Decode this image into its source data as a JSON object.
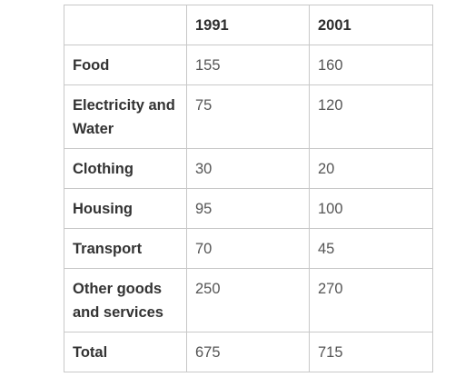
{
  "chart_data": {
    "type": "table",
    "columns": [
      "",
      "1991",
      "2001"
    ],
    "rows": [
      {
        "label": "Food",
        "values": [
          "155",
          "160"
        ]
      },
      {
        "label": "Electricity and Water",
        "values": [
          "75",
          "120"
        ]
      },
      {
        "label": "Clothing",
        "values": [
          "30",
          "20"
        ]
      },
      {
        "label": "Housing",
        "values": [
          "95",
          "100"
        ]
      },
      {
        "label": "Transport",
        "values": [
          "70",
          "45"
        ]
      },
      {
        "label": "Other goods and services",
        "values": [
          "250",
          "270"
        ]
      },
      {
        "label": "Total",
        "values": [
          "675",
          "715"
        ]
      }
    ]
  }
}
